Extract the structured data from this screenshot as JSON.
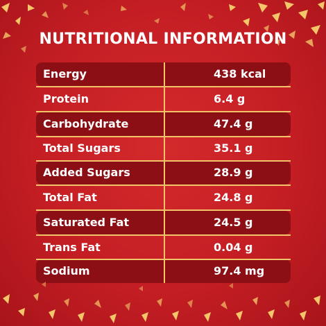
{
  "title": "NUTRITIONAL INFORMATION",
  "rows": [
    {
      "label": "Energy",
      "value": "438 kcal"
    },
    {
      "label": "Protein",
      "value": "6.4 g"
    },
    {
      "label": "Carbohydrate",
      "value": "47.4 g"
    },
    {
      "label": "Total Sugars",
      "value": "35.1 g"
    },
    {
      "label": "Added Sugars",
      "value": "28.9 g"
    },
    {
      "label": "Total Fat",
      "value": "24.8 g"
    },
    {
      "label": "Saturated Fat",
      "value": "24.5 g"
    },
    {
      "label": "Trans Fat",
      "value": "0.04 g"
    },
    {
      "label": "Sodium",
      "value": "97.4 mg"
    }
  ],
  "colors": {
    "background": "#c41e24",
    "row_dark": "#8b0f14",
    "divider": "#f2c46a",
    "text": "#ffffff",
    "confetti": "#f4c66a"
  }
}
